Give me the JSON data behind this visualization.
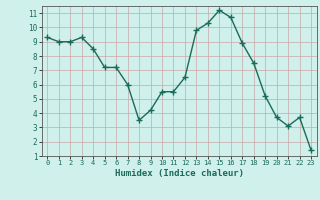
{
  "x": [
    0,
    1,
    2,
    3,
    4,
    5,
    6,
    7,
    8,
    9,
    10,
    11,
    12,
    13,
    14,
    15,
    16,
    17,
    18,
    19,
    20,
    21,
    22,
    23
  ],
  "y": [
    9.3,
    9.0,
    9.0,
    9.3,
    8.5,
    7.2,
    7.2,
    6.0,
    3.5,
    4.2,
    5.5,
    5.5,
    6.5,
    9.8,
    10.3,
    11.2,
    10.7,
    8.9,
    7.5,
    5.2,
    3.7,
    3.1,
    3.7,
    1.4
  ],
  "xlabel": "Humidex (Indice chaleur)",
  "ylim": [
    1,
    11.5
  ],
  "xlim": [
    -0.5,
    23.5
  ],
  "xticks": [
    0,
    1,
    2,
    3,
    4,
    5,
    6,
    7,
    8,
    9,
    10,
    11,
    12,
    13,
    14,
    15,
    16,
    17,
    18,
    19,
    20,
    21,
    22,
    23
  ],
  "yticks": [
    1,
    2,
    3,
    4,
    5,
    6,
    7,
    8,
    9,
    10,
    11
  ],
  "line_color": "#1a6b5a",
  "bg_color": "#d0f0eb",
  "grid_color": "#c8a8a8",
  "marker": "+",
  "marker_size": 4,
  "linewidth": 1.0
}
